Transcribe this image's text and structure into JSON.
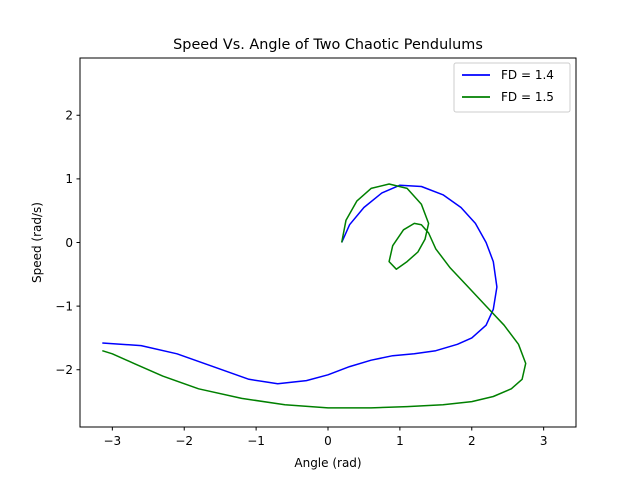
{
  "chart_data": {
    "type": "line",
    "title": "Speed Vs. Angle of Two Chaotic Pendulums",
    "xlabel": "Angle (rad)",
    "ylabel": "Speed (rad/s)",
    "xlim": [
      -3.45,
      3.45
    ],
    "ylim": [
      -2.9,
      2.9
    ],
    "xticks": [
      -3,
      -2,
      -1,
      0,
      1,
      2,
      3
    ],
    "yticks": [
      -2,
      -1,
      0,
      1,
      2
    ],
    "grid": false,
    "legend_position": "top-right",
    "series": [
      {
        "name": "FD = 1.4",
        "color": "#0000ff",
        "x": [
          0.19,
          0.3,
          0.5,
          0.75,
          1.0,
          1.3,
          1.6,
          1.85,
          2.05,
          2.2,
          2.3,
          2.35,
          2.3,
          2.2,
          2.0,
          1.8,
          1.5,
          1.2,
          0.9,
          0.6,
          0.3,
          0.0,
          -0.3,
          -0.7,
          -1.1,
          -1.6,
          -2.1,
          -2.6,
          -3.14
        ],
        "y": [
          0.0,
          0.28,
          0.55,
          0.78,
          0.9,
          0.88,
          0.75,
          0.55,
          0.3,
          0.0,
          -0.3,
          -0.7,
          -1.05,
          -1.3,
          -1.5,
          -1.6,
          -1.7,
          -1.75,
          -1.78,
          -1.85,
          -1.95,
          -2.08,
          -2.17,
          -2.22,
          -2.15,
          -1.95,
          -1.75,
          -1.62,
          -1.58
        ]
      },
      {
        "name": "FD = 1.5",
        "color": "#008000",
        "x": [
          0.19,
          0.25,
          0.4,
          0.6,
          0.85,
          1.1,
          1.3,
          1.4,
          1.35,
          1.25,
          1.1,
          0.95,
          0.85,
          0.9,
          1.05,
          1.2,
          1.3,
          1.4,
          1.5,
          1.7,
          1.95,
          2.2,
          2.45,
          2.65,
          2.75,
          2.7,
          2.55,
          2.3,
          2.0,
          1.6,
          1.1,
          0.6,
          0.0,
          -0.6,
          -1.2,
          -1.8,
          -2.3,
          -2.7,
          -3.0,
          -3.14
        ],
        "y": [
          0.0,
          0.35,
          0.65,
          0.85,
          0.92,
          0.85,
          0.6,
          0.3,
          0.05,
          -0.15,
          -0.3,
          -0.42,
          -0.3,
          -0.05,
          0.2,
          0.3,
          0.28,
          0.15,
          -0.1,
          -0.4,
          -0.7,
          -1.0,
          -1.3,
          -1.6,
          -1.9,
          -2.15,
          -2.3,
          -2.42,
          -2.5,
          -2.55,
          -2.58,
          -2.6,
          -2.6,
          -2.55,
          -2.45,
          -2.3,
          -2.1,
          -1.9,
          -1.75,
          -1.7
        ]
      }
    ]
  }
}
